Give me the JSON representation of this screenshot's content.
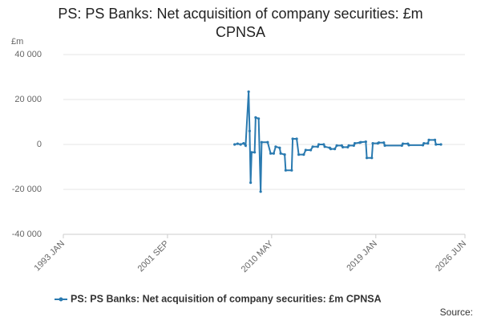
{
  "chart_data": {
    "type": "line",
    "title": "PS: PS Banks: Net acquisition of company securities: £m CPNSA",
    "y_label": "£m",
    "source": "Source:",
    "xlim": [
      "1993 JAN",
      "2026 JUN"
    ],
    "xticks": [
      "1993 JAN",
      "2001 SEP",
      "2010 MAY",
      "2019 JAN",
      "2026 JUN"
    ],
    "ylim": [
      -40000,
      40000
    ],
    "yticks": [
      {
        "value": -40000,
        "label": "-40 000"
      },
      {
        "value": -20000,
        "label": "-20 000"
      },
      0,
      {
        "value": 20000,
        "label": "20 000"
      },
      {
        "value": 40000,
        "label": "40 000"
      }
    ],
    "grid": true,
    "x": [
      "2007 APR",
      "2007 JUL",
      "2007 OCT",
      "2008 JAN",
      "2008 MAR",
      "2008 JUN",
      "2008 JUL",
      "2008 AUG",
      "2008 SEP",
      "2008 DEC",
      "2009 JAN",
      "2009 APR",
      "2009 JUN",
      "2009 JUL",
      "2010 JAN",
      "2010 APR",
      "2010 JUL",
      "2010 SEP",
      "2011 JAN",
      "2011 FEB",
      "2011 JUN",
      "2011 JUL",
      "2012 JAN",
      "2012 FEB",
      "2012 JUN",
      "2012 AUG",
      "2013 JAN",
      "2013 MAR",
      "2013 AUG",
      "2013 OCT",
      "2014 MAR",
      "2014 APR",
      "2014 SEP",
      "2014 OCT",
      "2015 MAR",
      "2015 APR",
      "2015 AUG",
      "2015 OCT",
      "2016 MAR",
      "2016 APR",
      "2016 SEP",
      "2016 OCT",
      "2017 MAR",
      "2017 APR",
      "2017 SEP",
      "2017 OCT",
      "2018 MAR",
      "2018 APR",
      "2018 SEP",
      "2018 OCT",
      "2019 MAR",
      "2019 APR",
      "2019 SEP",
      "2019 OCT",
      "2021 MAR",
      "2021 APR",
      "2021 SEP",
      "2021 OCT",
      "2022 DEC",
      "2023 JAN",
      "2023 MAY",
      "2023 JUN",
      "2023 DEC",
      "2024 JAN",
      "2024 JUN"
    ],
    "series": [
      {
        "name": "PS: PS Banks: Net acquisition of company securities: £m CPNSA",
        "color": "#2a7ab0",
        "values": [
          0,
          300,
          0,
          500,
          -500,
          23500,
          6000,
          -17000,
          -3500,
          -3500,
          12000,
          11500,
          -21000,
          1000,
          1000,
          -4000,
          -4000,
          -1000,
          -1500,
          -4000,
          -4500,
          -11500,
          -11500,
          2500,
          2500,
          -4500,
          -4500,
          -2500,
          -2500,
          -1000,
          -1000,
          0,
          0,
          -1000,
          -1500,
          -2000,
          -2000,
          -500,
          -500,
          -1200,
          -1200,
          -500,
          -500,
          500,
          800,
          1000,
          1200,
          -6000,
          -6000,
          500,
          500,
          800,
          800,
          -500,
          -500,
          300,
          300,
          -300,
          -300,
          500,
          500,
          2000,
          2000,
          0,
          0
        ]
      }
    ]
  }
}
